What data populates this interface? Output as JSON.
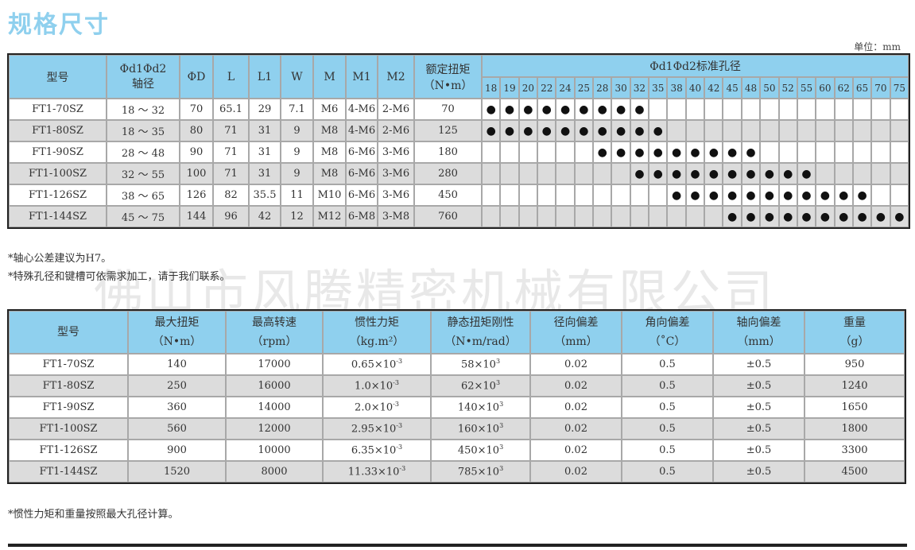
{
  "title": "规格尺寸",
  "unit": "单位：mm",
  "watermark": "佛山市风腾精密机械有限公司",
  "colors": {
    "header_bg": "#8fd0ee",
    "alt_row": "#dcdcdc",
    "title": "#8fd0ee"
  },
  "dimensions_table": {
    "headers": {
      "model": "型号",
      "bore_line1": "Φd1Φd2",
      "bore_line2": "轴径",
      "D": "ΦD",
      "L": "L",
      "L1": "L1",
      "W": "W",
      "M": "M",
      "M1": "M1",
      "M2": "M2",
      "torque_line1": "额定扭矩",
      "torque_line2": "（N•m）",
      "std_bore": "Φd1Φd2标准孔径"
    },
    "bore_sizes": [
      "18",
      "19",
      "20",
      "22",
      "24",
      "25",
      "28",
      "30",
      "32",
      "35",
      "38",
      "40",
      "42",
      "45",
      "48",
      "50",
      "52",
      "55",
      "60",
      "62",
      "65",
      "70",
      "75"
    ],
    "dot_symbol": "●",
    "rows": [
      {
        "model": "FT1-70SZ",
        "bore": "18 ～ 32",
        "D": "70",
        "L": "65.1",
        "L1": "29",
        "W": "7.1",
        "M": "M6",
        "M1": "4-M6",
        "M2": "2-M6",
        "torque": "70",
        "available": [
          "18",
          "19",
          "20",
          "22",
          "24",
          "25",
          "28",
          "30",
          "32"
        ]
      },
      {
        "model": "FT1-80SZ",
        "bore": "18 ～ 35",
        "D": "80",
        "L": "71",
        "L1": "31",
        "W": "9",
        "M": "M8",
        "M1": "4-M6",
        "M2": "2-M6",
        "torque": "125",
        "available": [
          "18",
          "19",
          "20",
          "22",
          "24",
          "25",
          "28",
          "30",
          "32",
          "35"
        ]
      },
      {
        "model": "FT1-90SZ",
        "bore": "28 ～ 48",
        "D": "90",
        "L": "71",
        "L1": "31",
        "W": "9",
        "M": "M8",
        "M1": "6-M6",
        "M2": "3-M6",
        "torque": "180",
        "available": [
          "28",
          "30",
          "32",
          "35",
          "38",
          "40",
          "42",
          "45",
          "48"
        ]
      },
      {
        "model": "FT1-100SZ",
        "bore": "32 ～ 55",
        "D": "100",
        "L": "71",
        "L1": "31",
        "W": "9",
        "M": "M8",
        "M1": "6-M6",
        "M2": "3-M6",
        "torque": "280",
        "available": [
          "32",
          "35",
          "38",
          "40",
          "42",
          "45",
          "48",
          "50",
          "52",
          "55"
        ]
      },
      {
        "model": "FT1-126SZ",
        "bore": "38 ～ 65",
        "D": "126",
        "L": "82",
        "L1": "35.5",
        "W": "11",
        "M": "M10",
        "M1": "6-M6",
        "M2": "3-M6",
        "torque": "450",
        "available": [
          "38",
          "40",
          "42",
          "45",
          "48",
          "50",
          "52",
          "55",
          "60",
          "62",
          "65"
        ]
      },
      {
        "model": "FT1-144SZ",
        "bore": "45 ～ 75",
        "D": "144",
        "L": "96",
        "L1": "42",
        "W": "12",
        "M": "M12",
        "M1": "6-M8",
        "M2": "3-M8",
        "torque": "760",
        "available": [
          "45",
          "48",
          "50",
          "52",
          "55",
          "60",
          "62",
          "65",
          "70",
          "75"
        ]
      }
    ]
  },
  "notes1": [
    "*轴心公差建议为H7。",
    "*特殊孔径和键槽可依需求加工，请于我们联系。"
  ],
  "performance_table": {
    "headers": [
      {
        "l1": "型号",
        "l2": ""
      },
      {
        "l1": "最大扭矩",
        "l2": "（N•m）"
      },
      {
        "l1": "最高转速",
        "l2": "（rpm）"
      },
      {
        "l1": "惯性力矩",
        "l2": "（kg.m²）"
      },
      {
        "l1": "静态扭矩刚性",
        "l2": "（N•m/rad）"
      },
      {
        "l1": "径向偏差",
        "l2": "（mm）"
      },
      {
        "l1": "角向偏差",
        "l2": "（˚C）"
      },
      {
        "l1": "轴向偏差",
        "l2": "（mm）"
      },
      {
        "l1": "重量",
        "l2": "（g）"
      }
    ],
    "rows": [
      {
        "model": "FT1-70SZ",
        "max_torque": "140",
        "max_speed": "17000",
        "inertia": "0.65×10",
        "inertia_exp": "-3",
        "stiffness": "58×10",
        "stiffness_exp": "3",
        "radial": "0.02",
        "angular": "0.5",
        "axial": "±0.5",
        "weight": "950"
      },
      {
        "model": "FT1-80SZ",
        "max_torque": "250",
        "max_speed": "16000",
        "inertia": "1.0×10",
        "inertia_exp": "-3",
        "stiffness": "62×10",
        "stiffness_exp": "3",
        "radial": "0.02",
        "angular": "0.5",
        "axial": "±0.5",
        "weight": "1240"
      },
      {
        "model": "FT1-90SZ",
        "max_torque": "360",
        "max_speed": "14000",
        "inertia": "2.0×10",
        "inertia_exp": "-3",
        "stiffness": "140×10",
        "stiffness_exp": "3",
        "radial": "0.02",
        "angular": "0.5",
        "axial": "±0.5",
        "weight": "1650"
      },
      {
        "model": "FT1-100SZ",
        "max_torque": "560",
        "max_speed": "12000",
        "inertia": "2.95×10",
        "inertia_exp": "-3",
        "stiffness": "160×10",
        "stiffness_exp": "3",
        "radial": "0.02",
        "angular": "0.5",
        "axial": "±0.5",
        "weight": "1800"
      },
      {
        "model": "FT1-126SZ",
        "max_torque": "900",
        "max_speed": "10000",
        "inertia": "6.35×10",
        "inertia_exp": "-3",
        "stiffness": "450×10",
        "stiffness_exp": "3",
        "radial": "0.02",
        "angular": "0.5",
        "axial": "±0.5",
        "weight": "3300"
      },
      {
        "model": "FT1-144SZ",
        "max_torque": "1520",
        "max_speed": "8000",
        "inertia": "11.33×10",
        "inertia_exp": "-3",
        "stiffness": "785×10",
        "stiffness_exp": "3",
        "radial": "0.02",
        "angular": "0.5",
        "axial": "±0.5",
        "weight": "4500"
      }
    ]
  },
  "notes2": [
    "*惯性力矩和重量按照最大孔径计算。"
  ]
}
